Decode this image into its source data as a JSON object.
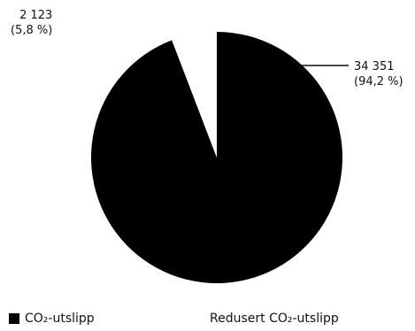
{
  "chart_data": {
    "type": "pie",
    "slices": [
      {
        "name": "CO₂-utslipp",
        "value": 34351,
        "percent": 94.2,
        "value_label": "34 351",
        "percent_label": "(94,2 %)",
        "color": "#000000"
      },
      {
        "name": "Redusert CO₂-utslipp",
        "value": 2123,
        "percent": 5.8,
        "value_label": "2 123",
        "percent_label": "(5,8 %)",
        "color": "#ffffff"
      }
    ],
    "legend_position": "bottom"
  }
}
